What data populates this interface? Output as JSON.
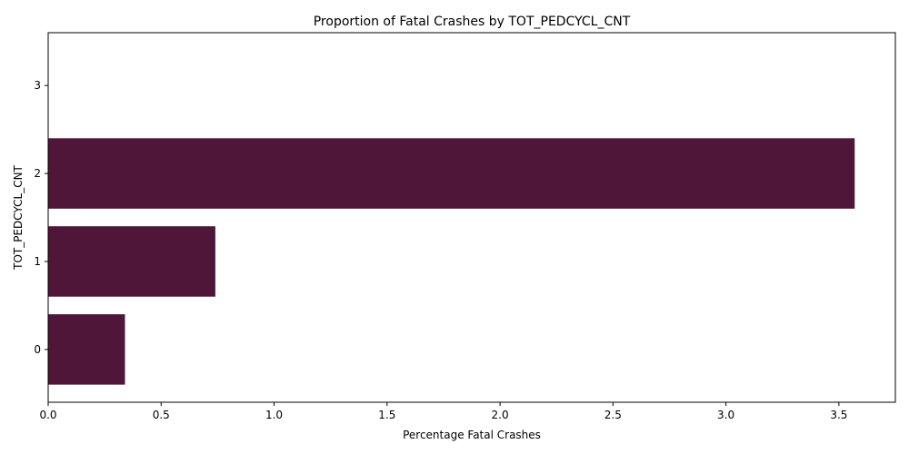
{
  "chart_data": {
    "type": "bar",
    "orientation": "horizontal",
    "title": "Proportion of Fatal Crashes by TOT_PEDCYCL_CNT",
    "xlabel": "Percentage Fatal Crashes",
    "ylabel": "TOT_PEDCYCL_CNT",
    "categories": [
      "0",
      "1",
      "2",
      "3"
    ],
    "values": [
      0.34,
      0.74,
      3.57,
      0
    ],
    "xlim": [
      0,
      3.75
    ],
    "xticks": [
      "0.0",
      "0.5",
      "1.0",
      "1.5",
      "2.0",
      "2.5",
      "3.0",
      "3.5"
    ],
    "bar_color": "#50163A",
    "grid": false
  }
}
